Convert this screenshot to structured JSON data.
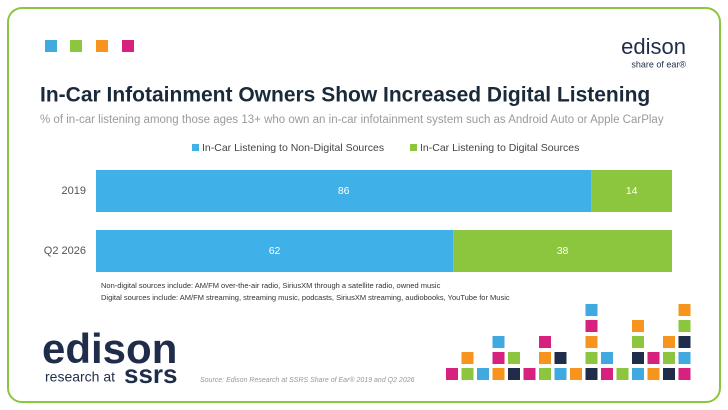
{
  "chart_data": {
    "type": "bar",
    "orientation": "horizontal",
    "stacked": true,
    "title": "In-Car Infotainment Owners Show Increased Digital Listening",
    "subtitle": "% of in-car listening among those ages 13+ who own an in-car infotainment system such as Android Auto or Apple CarPlay",
    "categories": [
      "2019",
      "Q2 2026"
    ],
    "series": [
      {
        "name": "In-Car Listening to Non-Digital Sources",
        "color": "#3fb0e8",
        "values": [
          86,
          62
        ]
      },
      {
        "name": "In-Car Listening to Digital Sources",
        "color": "#8cc63f",
        "values": [
          14,
          38
        ]
      }
    ],
    "xlim": [
      0,
      100
    ],
    "legend": "top",
    "notes": [
      "Non-digital sources include: AM/FM over-the-air radio, SiriusXM through a satellite radio, owned music",
      "Digital sources include: AM/FM streaming, streaming music, podcasts, SiriusXM streaming, audiobooks, YouTube for Music"
    ],
    "source": "Source: Edison Research at SSRS Share of Ear® 2019 and Q2 2026"
  },
  "top_logo": {
    "name": "edison",
    "tagline": "share of ear®"
  },
  "bottom_logo": {
    "name": "edison",
    "line": "research at",
    "partner": "ssrs"
  }
}
